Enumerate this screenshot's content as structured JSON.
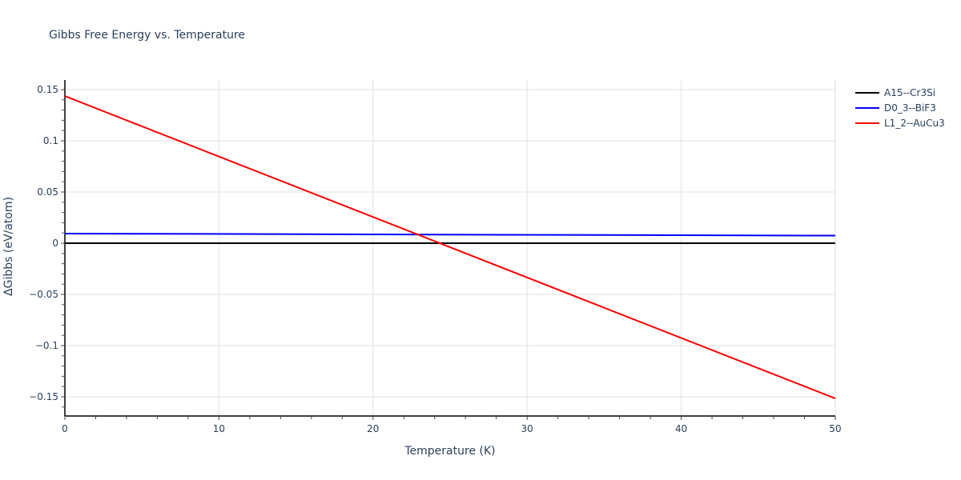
{
  "chart_data": {
    "type": "line",
    "title": "Gibbs Free Energy vs. Temperature",
    "xlabel": "Temperature (K)",
    "ylabel": "ΔGibbs (eV/atom)",
    "xlim": [
      0,
      50
    ],
    "ylim": [
      -0.168,
      0.16
    ],
    "x_ticks": [
      0,
      10,
      20,
      30,
      40,
      50
    ],
    "y_ticks": [
      0.15,
      0.1,
      0.05,
      0,
      -0.05,
      -0.1,
      -0.15
    ],
    "y_tick_labels": [
      "0.15",
      "0.1",
      "0.05",
      "0",
      "−0.05",
      "−0.1",
      "−0.15"
    ],
    "grid": true,
    "legend_position": "right",
    "series": [
      {
        "name": "A15--Cr3Si",
        "color": "#000000",
        "x": [
          0,
          50
        ],
        "y": [
          0.0,
          0.0
        ]
      },
      {
        "name": "D0_3--BiF3",
        "color": "#0000ff",
        "x": [
          0,
          50
        ],
        "y": [
          0.0094,
          0.0074
        ]
      },
      {
        "name": "L1_2--AuCu3",
        "color": "#ff0000",
        "x": [
          0,
          50
        ],
        "y": [
          0.1437,
          -0.1516
        ]
      }
    ]
  },
  "title": "Gibbs Free Energy vs. Temperature",
  "xaxis": {
    "title": "Temperature (K)",
    "ticks": [
      "0",
      "10",
      "20",
      "30",
      "40",
      "50"
    ]
  },
  "yaxis": {
    "title": "ΔGibbs (eV/atom)",
    "ticks": [
      "0.15",
      "0.1",
      "0.05",
      "0",
      "−0.05",
      "−0.1",
      "−0.15"
    ]
  },
  "legend": {
    "items": [
      {
        "label": "A15--Cr3Si",
        "color": "#000000"
      },
      {
        "label": "D0_3--BiF3",
        "color": "#0000ff"
      },
      {
        "label": "L1_2--AuCu3",
        "color": "#ff0000"
      }
    ]
  }
}
